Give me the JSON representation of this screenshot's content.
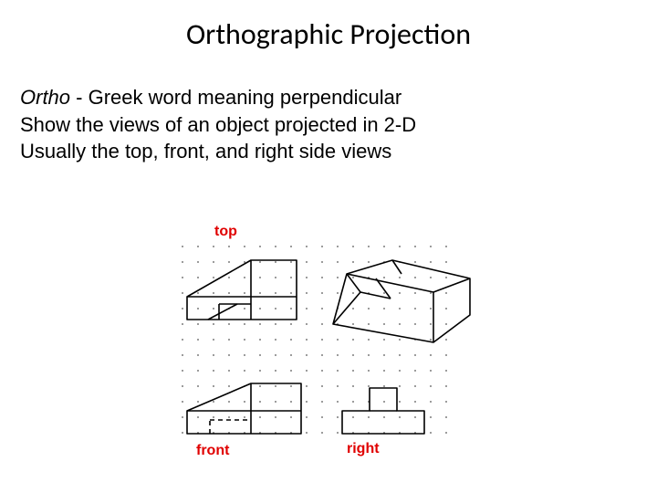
{
  "title": "Orthographic Projection",
  "body": {
    "line1_italic": "Ortho",
    "line1_rest": " - Greek word meaning perpendicular",
    "line2": "Show the views of an object projected in 2-D",
    "line3": "Usually the top, front, and right side views"
  },
  "labels": {
    "top": "top",
    "front": "front",
    "right": "right"
  },
  "style": {
    "label_color": "#e00000",
    "stroke_color": "#000000",
    "dot_color": "#555555",
    "background": "#ffffff",
    "stroke_width": 1.6
  },
  "dot_grid": {
    "spacing": 17,
    "cols": 18,
    "rows": 14
  }
}
